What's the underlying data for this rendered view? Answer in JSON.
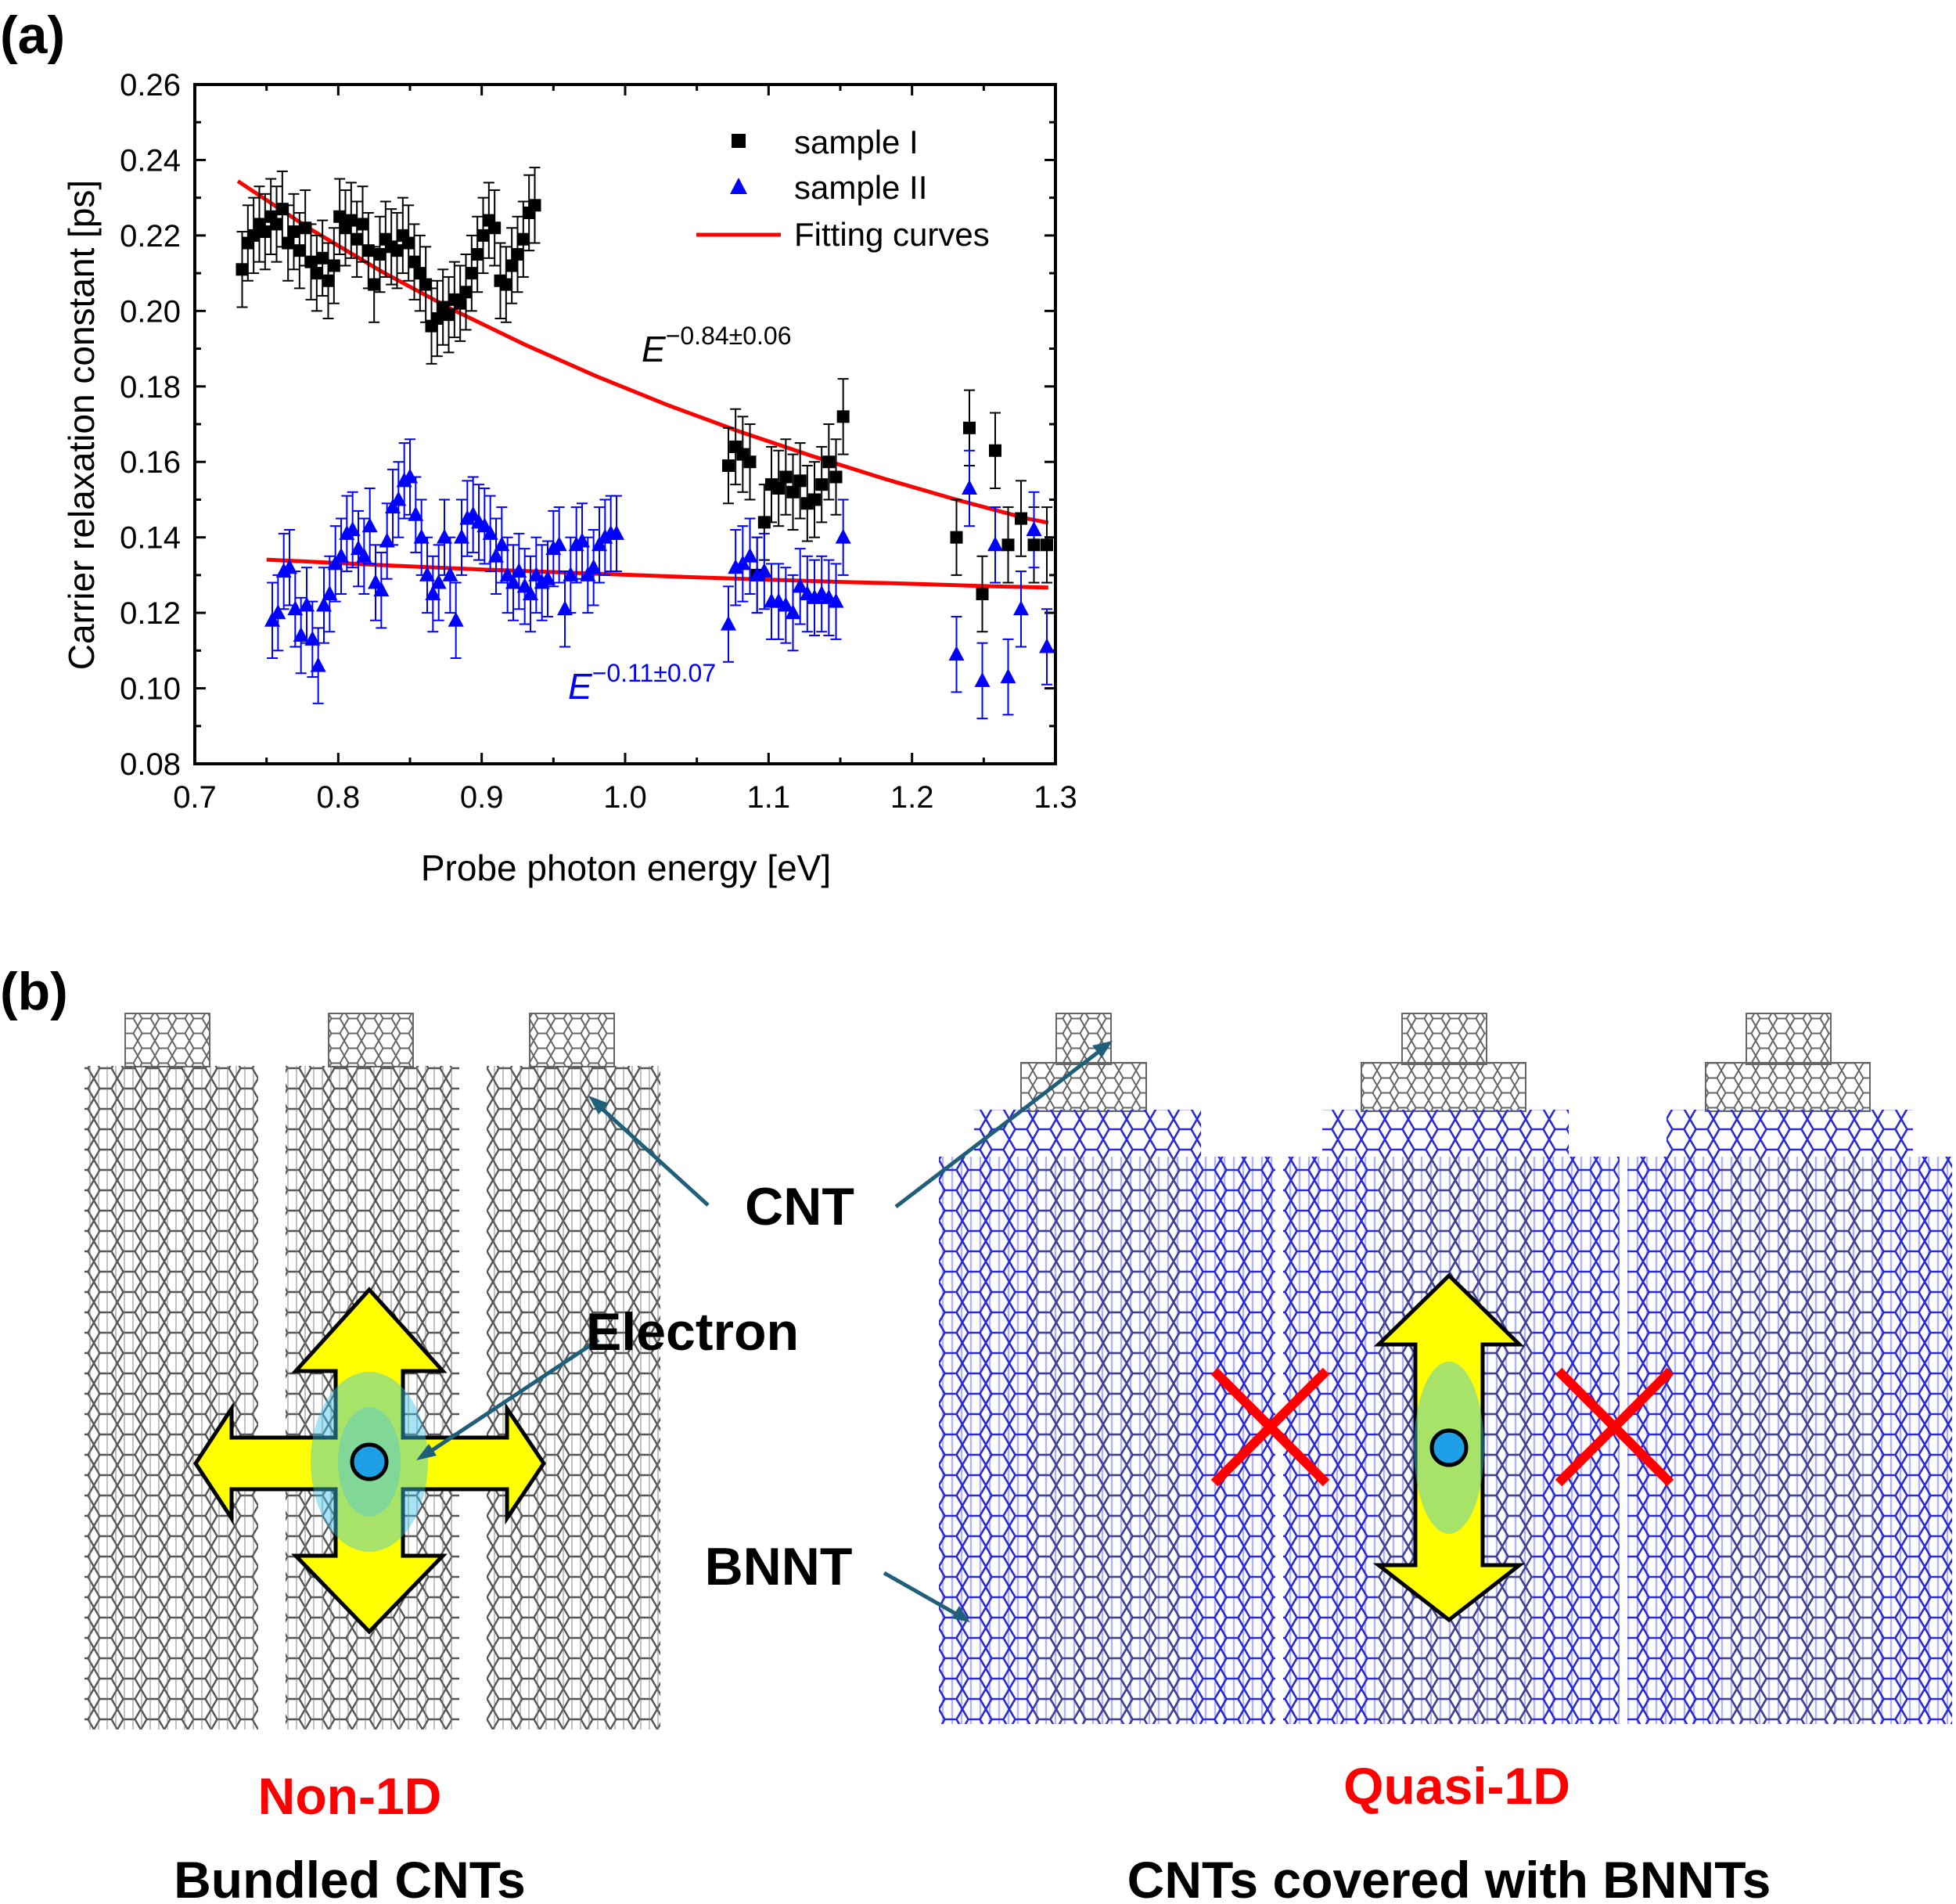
{
  "panel_a": {
    "label": "(a)"
  },
  "panel_b": {
    "label": "(b)"
  },
  "colors": {
    "sample1": "#000000",
    "sample2": "#0000ff",
    "fit": "#ff0000",
    "cnt": "#555555",
    "bnnt": "#2a2ad8",
    "arrow": "#ffff00",
    "electron": "#1ea0e6",
    "pointer": "#1f5f7a",
    "label_red": "#ff0000"
  },
  "chart_data": {
    "type": "scatter",
    "xlabel": "Probe photon energy [eV]",
    "ylabel": "Carrier relaxation constant [ps]",
    "xlim": [
      0.7,
      1.3
    ],
    "ylim": [
      0.08,
      0.26
    ],
    "xticks": [
      "0.7",
      "0.8",
      "0.9",
      "1.0",
      "1.1",
      "1.2",
      "1.3"
    ],
    "yticks": [
      "0.08",
      "0.10",
      "0.12",
      "0.14",
      "0.16",
      "0.18",
      "0.20",
      "0.22",
      "0.24",
      "0.26"
    ],
    "legend_position": "top-right",
    "legend": [
      "sample I",
      "sample II",
      "Fitting curves"
    ],
    "series": [
      {
        "name": "sample I",
        "marker": "square",
        "color": "#000000",
        "error": 0.01,
        "x": [
          0.733,
          0.737,
          0.741,
          0.745,
          0.749,
          0.753,
          0.757,
          0.761,
          0.765,
          0.769,
          0.773,
          0.777,
          0.781,
          0.785,
          0.789,
          0.793,
          0.797,
          0.801,
          0.805,
          0.809,
          0.813,
          0.817,
          0.821,
          0.825,
          0.829,
          0.833,
          0.837,
          0.841,
          0.845,
          0.849,
          0.853,
          0.857,
          0.861,
          0.865,
          0.869,
          0.873,
          0.877,
          0.881,
          0.885,
          0.889,
          0.893,
          0.897,
          0.901,
          0.905,
          0.909,
          0.913,
          0.917,
          0.921,
          0.925,
          0.929,
          0.933,
          0.937,
          1.072,
          1.077,
          1.082,
          1.087,
          1.092,
          1.097,
          1.102,
          1.107,
          1.112,
          1.117,
          1.122,
          1.127,
          1.132,
          1.137,
          1.142,
          1.147,
          1.152,
          1.231,
          1.24,
          1.249,
          1.258,
          1.267,
          1.276,
          1.285,
          1.294
        ],
        "y": [
          0.211,
          0.218,
          0.22,
          0.223,
          0.221,
          0.225,
          0.223,
          0.227,
          0.218,
          0.221,
          0.216,
          0.222,
          0.213,
          0.21,
          0.214,
          0.208,
          0.212,
          0.225,
          0.222,
          0.224,
          0.219,
          0.223,
          0.216,
          0.207,
          0.215,
          0.219,
          0.217,
          0.216,
          0.22,
          0.218,
          0.213,
          0.21,
          0.207,
          0.196,
          0.198,
          0.201,
          0.199,
          0.203,
          0.202,
          0.205,
          0.21,
          0.215,
          0.22,
          0.224,
          0.222,
          0.208,
          0.207,
          0.212,
          0.215,
          0.219,
          0.226,
          0.228,
          0.159,
          0.164,
          0.162,
          0.16,
          0.13,
          0.144,
          0.154,
          0.153,
          0.156,
          0.152,
          0.155,
          0.149,
          0.15,
          0.154,
          0.16,
          0.156,
          0.172,
          0.14,
          0.169,
          0.125,
          0.163,
          0.138,
          0.145,
          0.138,
          0.138
        ]
      },
      {
        "name": "sample II",
        "marker": "triangle",
        "color": "#0000ff",
        "error": 0.01,
        "x": [
          0.754,
          0.758,
          0.762,
          0.766,
          0.77,
          0.774,
          0.778,
          0.782,
          0.786,
          0.79,
          0.794,
          0.798,
          0.802,
          0.806,
          0.81,
          0.814,
          0.818,
          0.822,
          0.826,
          0.83,
          0.834,
          0.838,
          0.842,
          0.846,
          0.85,
          0.854,
          0.858,
          0.862,
          0.866,
          0.87,
          0.874,
          0.878,
          0.882,
          0.886,
          0.89,
          0.894,
          0.898,
          0.902,
          0.906,
          0.91,
          0.914,
          0.918,
          0.922,
          0.926,
          0.93,
          0.934,
          0.938,
          0.942,
          0.946,
          0.95,
          0.954,
          0.958,
          0.962,
          0.966,
          0.97,
          0.974,
          0.978,
          0.982,
          0.986,
          0.99,
          0.994,
          1.072,
          1.077,
          1.082,
          1.087,
          1.092,
          1.097,
          1.102,
          1.107,
          1.112,
          1.117,
          1.122,
          1.127,
          1.132,
          1.137,
          1.142,
          1.147,
          1.152,
          1.231,
          1.24,
          1.249,
          1.258,
          1.267,
          1.276,
          1.285,
          1.294
        ],
        "y": [
          0.118,
          0.12,
          0.131,
          0.132,
          0.121,
          0.114,
          0.122,
          0.113,
          0.106,
          0.122,
          0.125,
          0.133,
          0.135,
          0.141,
          0.142,
          0.137,
          0.135,
          0.143,
          0.128,
          0.126,
          0.139,
          0.148,
          0.15,
          0.155,
          0.156,
          0.146,
          0.14,
          0.13,
          0.125,
          0.128,
          0.14,
          0.13,
          0.118,
          0.14,
          0.145,
          0.146,
          0.144,
          0.143,
          0.141,
          0.135,
          0.138,
          0.13,
          0.128,
          0.131,
          0.127,
          0.125,
          0.13,
          0.128,
          0.129,
          0.137,
          0.138,
          0.121,
          0.13,
          0.138,
          0.139,
          0.13,
          0.132,
          0.138,
          0.14,
          0.141,
          0.141,
          0.117,
          0.132,
          0.133,
          0.135,
          0.13,
          0.131,
          0.123,
          0.123,
          0.122,
          0.12,
          0.127,
          0.125,
          0.124,
          0.125,
          0.124,
          0.123,
          0.14,
          0.109,
          0.153,
          0.102,
          0.138,
          0.103,
          0.121,
          0.142,
          0.111
        ]
      },
      {
        "name": "Fitting curves",
        "type": "line",
        "color": "#ff0000",
        "x": [
          0.73,
          0.78,
          0.83,
          0.88,
          0.93,
          0.98,
          1.03,
          1.08,
          1.13,
          1.18,
          1.23,
          1.28,
          1.295
        ],
        "y": [
          0.2344,
          0.2218,
          0.2105,
          0.2003,
          0.1911,
          0.1827,
          0.175,
          0.168,
          0.1616,
          0.1556,
          0.1501,
          0.145,
          0.1439
        ]
      },
      {
        "type": "line",
        "color": "#ff0000",
        "x": [
          0.75,
          0.8,
          0.85,
          0.9,
          0.95,
          1.0,
          1.05,
          1.1,
          1.15,
          1.2,
          1.25,
          1.295
        ],
        "y": [
          0.1341,
          0.1332,
          0.1323,
          0.1315,
          0.1308,
          0.1301,
          0.1294,
          0.1288,
          0.1282,
          0.1277,
          0.1271,
          0.1267
        ]
      }
    ],
    "annotations": [
      {
        "base": "E",
        "sup": "−0.84±0.06",
        "color": "#000000"
      },
      {
        "base": "E",
        "sup": "−0.11±0.07",
        "color": "#0000ff"
      }
    ]
  },
  "diagram": {
    "cnt_label": "CNT",
    "electron_label": "Electron",
    "bnnt_label": "BNNT",
    "left_title": "Non-1D",
    "left_caption": "Bundled CNTs",
    "right_title": "Quasi-1D",
    "right_caption": "CNTs covered with BNNTs"
  }
}
